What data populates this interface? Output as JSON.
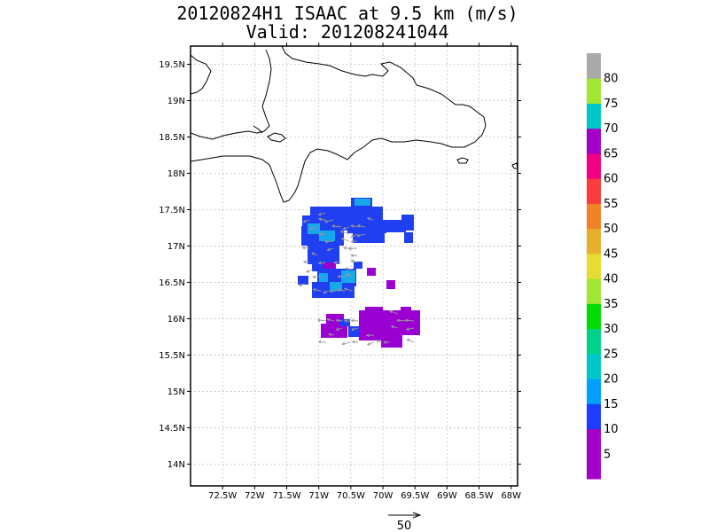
{
  "title": {
    "line1": "20120824H1 ISAAC at 9.5 km (m/s)",
    "line2": "Valid: 201208241044"
  },
  "map": {
    "lon_range": [
      -73.0,
      -67.9
    ],
    "lat_range": [
      13.7,
      19.75
    ],
    "lon_ticks": [
      {
        "value": -72.5,
        "label": "72.5W"
      },
      {
        "value": -72.0,
        "label": "72W"
      },
      {
        "value": -71.5,
        "label": "71.5W"
      },
      {
        "value": -71.0,
        "label": "71W"
      },
      {
        "value": -70.5,
        "label": "70.5W"
      },
      {
        "value": -70.0,
        "label": "70W"
      },
      {
        "value": -69.5,
        "label": "69.5W"
      },
      {
        "value": -69.0,
        "label": "69W"
      },
      {
        "value": -68.5,
        "label": "68.5W"
      },
      {
        "value": -68.0,
        "label": "68W"
      }
    ],
    "lat_ticks": [
      {
        "value": 14.0,
        "label": "14N"
      },
      {
        "value": 14.5,
        "label": "14.5N"
      },
      {
        "value": 15.0,
        "label": "15N"
      },
      {
        "value": 15.5,
        "label": "15.5N"
      },
      {
        "value": 16.0,
        "label": "16N"
      },
      {
        "value": 16.5,
        "label": "16.5N"
      },
      {
        "value": 17.0,
        "label": "17N"
      },
      {
        "value": 17.5,
        "label": "17.5N"
      },
      {
        "value": 18.0,
        "label": "18N"
      },
      {
        "value": 18.5,
        "label": "18.5N"
      },
      {
        "value": 19.0,
        "label": "19N"
      },
      {
        "value": 19.5,
        "label": "19.5N"
      }
    ],
    "grid": true,
    "colors": {
      "blue": "#1f3ff0",
      "cyan": "#16a8e8",
      "purple": "#9b00d3",
      "arrow": "#9a9a9a",
      "coast": "#000000"
    }
  },
  "colorbar": {
    "levels": [
      {
        "value": "5",
        "color": "#a000c8"
      },
      {
        "value": "10",
        "color": "#a000c8"
      },
      {
        "value": "15",
        "color": "#1e3cff"
      },
      {
        "value": "20",
        "color": "#00a0ff"
      },
      {
        "value": "25",
        "color": "#00c8c8"
      },
      {
        "value": "30",
        "color": "#00d28c"
      },
      {
        "value": "35",
        "color": "#00dc00"
      },
      {
        "value": "40",
        "color": "#a0e632"
      },
      {
        "value": "45",
        "color": "#e6dc32"
      },
      {
        "value": "50",
        "color": "#e6af2d"
      },
      {
        "value": "55",
        "color": "#f08228"
      },
      {
        "value": "60",
        "color": "#fa3c3c"
      },
      {
        "value": "65",
        "color": "#f00082"
      },
      {
        "value": "70",
        "color": "#a000c8"
      },
      {
        "value": "75",
        "color": "#00c8c8"
      },
      {
        "value": "80",
        "color": "#a0e632"
      }
    ],
    "top_color": "#aaaaaa"
  },
  "reference_vector": {
    "label": "50"
  }
}
